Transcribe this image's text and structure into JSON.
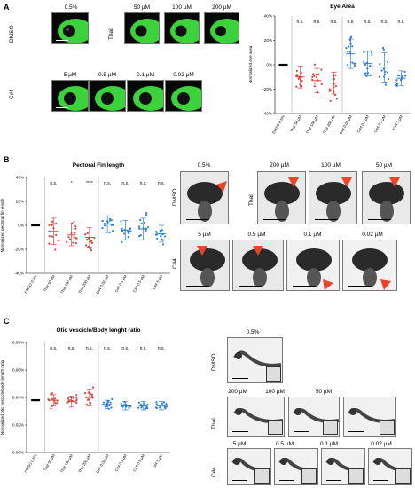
{
  "panels": {
    "A": {
      "label": "A",
      "rows": [
        "DMSO",
        "Thal",
        "C#4"
      ],
      "image_labels": [
        "0.5%",
        "50 µM",
        "100 µM",
        "200 µM",
        "5 µM",
        "0.5 µM",
        "0.1 µM",
        "0.02 µM"
      ],
      "chart_title": "Eye Area",
      "ylabel": "Normalized eye area"
    },
    "B": {
      "label": "B",
      "rows": [
        "DMSO",
        "Thal",
        "C#4"
      ],
      "image_labels": [
        "0.5%",
        "200 µM",
        "100 µM",
        "50 µM",
        "5 µM",
        "0.5 µM",
        "0.1 µM",
        "0.02 µM"
      ],
      "chart_title": "Pectoral Fin length",
      "ylabel": "Normalized pectoral fin length"
    },
    "C": {
      "label": "C",
      "rows": [
        "DMSO",
        "Thal",
        "C#4"
      ],
      "image_labels": [
        "0.5%",
        "200 µM",
        "100 µM",
        "50 µM",
        "5 µM",
        "0.5 µM",
        "0.1 µM",
        "0.02 µM"
      ],
      "chart_title": "Otic vescicle/Body lenght ratio",
      "ylabel": "Normalized otic vescicle/body length ratio"
    }
  },
  "chart_data": [
    {
      "type": "scatter",
      "title": "Eye Area",
      "ylabel": "Normalized eye area",
      "categories": [
        "DMSO 0.5%",
        "Thal 50 µM",
        "Thal 100 µM",
        "Thal 200 µM",
        "C#4 0.02 µM",
        "C#4 0.1 µM",
        "C#4 0.5 µM",
        "C#4 5 µM"
      ],
      "yticks": [
        "40%",
        "20%",
        "0%",
        "-20%",
        "-40%"
      ],
      "ylim": [
        -40,
        40
      ],
      "means": [
        0,
        -10,
        -13,
        -15,
        9,
        1,
        -2,
        -11
      ],
      "sd": [
        0,
        9,
        10,
        9,
        12,
        10,
        12,
        6
      ],
      "significance": [
        "",
        "n.s.",
        "n.s.",
        "n.s.",
        "n.s.",
        "n.s.",
        "n.s.",
        "n.s."
      ],
      "series_colors": [
        "#000000",
        "#d9453f",
        "#d9453f",
        "#d9453f",
        "#2f7ed8",
        "#2f7ed8",
        "#2f7ed8",
        "#2f7ed8"
      ]
    },
    {
      "type": "scatter",
      "title": "Pectoral Fin length",
      "ylabel": "Normalized pectoral fin length",
      "categories": [
        "DMSO 0.5%",
        "Thal 50 µM",
        "Thal 100 µM",
        "Thal 200 µM",
        "C#4 0.02 µM",
        "C#4 0.1 µM",
        "C#4 0.5 µM",
        "C#4 5 µM"
      ],
      "yticks": [
        "40%",
        "20%",
        "0%",
        "-20%",
        "-40%"
      ],
      "ylim": [
        -40,
        40
      ],
      "means": [
        0,
        -5,
        -8,
        -10,
        1,
        -4,
        -3,
        -7
      ],
      "sd": [
        0,
        11,
        9,
        8,
        7,
        8,
        9,
        7
      ],
      "significance": [
        "",
        "n.s.",
        "*",
        "****",
        "n.s.",
        "n.s.",
        "n.s.",
        "n.s."
      ],
      "series_colors": [
        "#000000",
        "#d9453f",
        "#d9453f",
        "#d9453f",
        "#2f7ed8",
        "#2f7ed8",
        "#2f7ed8",
        "#2f7ed8"
      ]
    },
    {
      "type": "scatter",
      "title": "Otic vescicle/Body lenght ratio",
      "ylabel": "Normalized otic vescicle/body length ratio",
      "categories": [
        "DMSO 0.5%",
        "Thal 50 µM",
        "Thal 100 µM",
        "Thal 200 µM",
        "C#4 0.02 µM",
        "C#4 0.1 µM",
        "C#4 0.5 µM",
        "C#4 5 µM"
      ],
      "yticks": [
        "0.08%",
        "0.06%",
        "0.04%",
        "0.02%",
        "0.00%"
      ],
      "ylim": [
        0,
        0.08
      ],
      "means": [
        0.038,
        0.038,
        0.037,
        0.04,
        0.035,
        0.034,
        0.034,
        0.034
      ],
      "sd": [
        0,
        0.004,
        0.004,
        0.006,
        0.003,
        0.003,
        0.003,
        0.003
      ],
      "significance": [
        "",
        "n.s.",
        "n.s.",
        "n.s.",
        "n.s.",
        "n.s.",
        "n.s.",
        "n.s."
      ],
      "series_colors": [
        "#000000",
        "#d9453f",
        "#d9453f",
        "#d9453f",
        "#2f7ed8",
        "#2f7ed8",
        "#2f7ed8",
        "#2f7ed8"
      ]
    }
  ]
}
